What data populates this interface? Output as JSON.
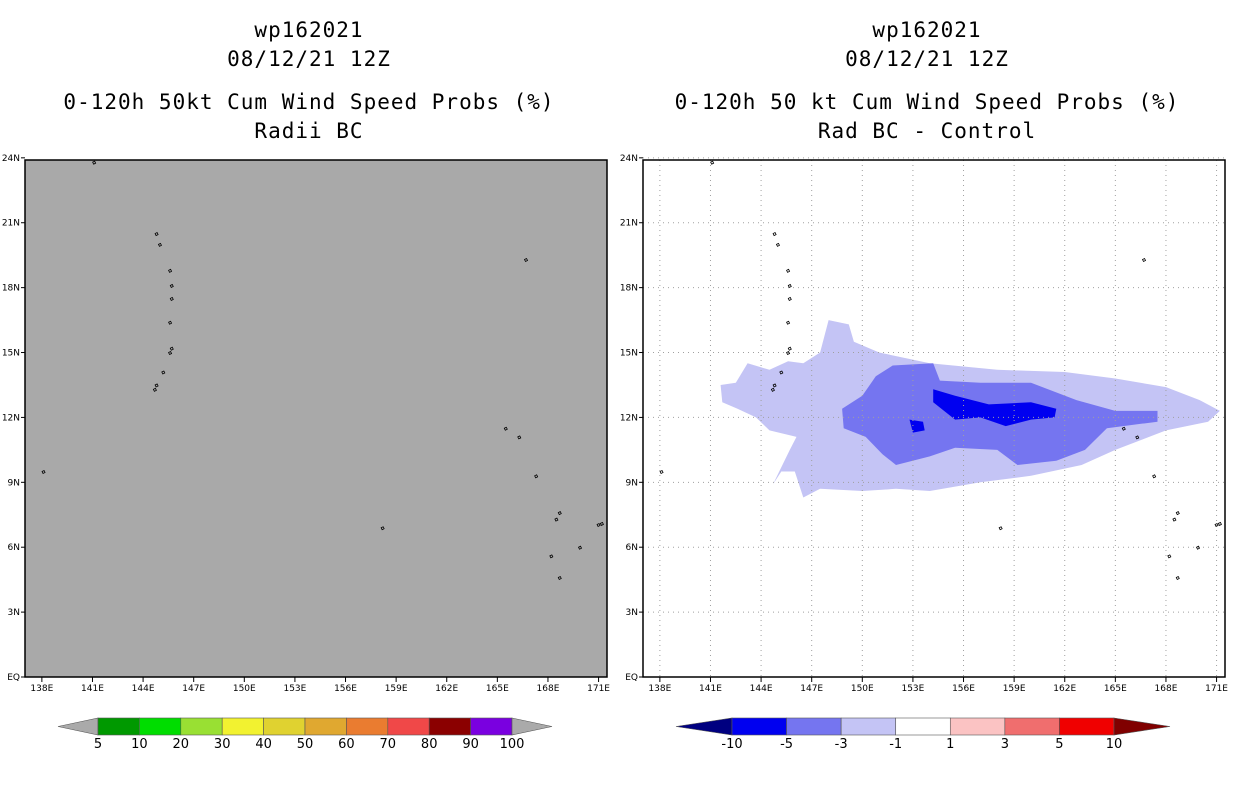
{
  "chart_data": [
    {
      "type": "filled-contour-map",
      "title": [
        "wp162021",
        "08/12/21 12Z",
        "0-120h 50kt Cum Wind Speed Probs (%)",
        "Radii BC"
      ],
      "field": "none",
      "fill_color": "#a9a9a9",
      "grid": false,
      "x_ticks": [
        "138E",
        "141E",
        "144E",
        "147E",
        "150E",
        "153E",
        "156E",
        "159E",
        "162E",
        "165E",
        "168E",
        "171E"
      ],
      "y_ticks": [
        "EQ",
        "3N",
        "6N",
        "9N",
        "12N",
        "15N",
        "18N",
        "21N",
        "24N"
      ],
      "xlim": [
        137,
        171.5
      ],
      "ylim": [
        0,
        23.9
      ],
      "colorbar": {
        "labels": [
          "5",
          "10",
          "20",
          "30",
          "40",
          "50",
          "60",
          "70",
          "80",
          "90",
          "100"
        ],
        "colors": [
          "#aaaaaa",
          "#009900",
          "#00dd00",
          "#99e033",
          "#f2f230",
          "#e0d230",
          "#e0a830",
          "#ea7c30",
          "#f04848",
          "#8b0000",
          "#7a00e0",
          "#aaaaaa"
        ]
      }
    },
    {
      "type": "filled-contour-map",
      "title": [
        "wp162021",
        "08/12/21 12Z",
        "0-120h 50 kt Cum Wind Speed Probs (%)",
        "Rad BC - Control"
      ],
      "field": "difference",
      "grid": true,
      "x_ticks": [
        "138E",
        "141E",
        "144E",
        "147E",
        "150E",
        "153E",
        "156E",
        "159E",
        "162E",
        "165E",
        "168E",
        "171E"
      ],
      "y_ticks": [
        "EQ",
        "3N",
        "6N",
        "9N",
        "12N",
        "15N",
        "18N",
        "21N",
        "24N"
      ],
      "xlim": [
        137,
        171.5
      ],
      "ylim": [
        0,
        23.9
      ],
      "contours": [
        {
          "level": "-3 to -1",
          "color": "#c4c4f5",
          "polygon": [
            [
              146.5,
              14.5
            ],
            [
              147.5,
              15
            ],
            [
              148,
              16.5
            ],
            [
              149.2,
              16.3
            ],
            [
              149.5,
              15.5
            ],
            [
              151,
              15
            ],
            [
              154,
              14.5
            ],
            [
              158,
              14.2
            ],
            [
              162,
              14.1
            ],
            [
              165,
              13.8
            ],
            [
              168,
              13.4
            ],
            [
              170,
              12.8
            ],
            [
              171.2,
              12.3
            ],
            [
              170.5,
              11.8
            ],
            [
              168,
              11.4
            ],
            [
              165,
              10.5
            ],
            [
              163,
              9.8
            ],
            [
              160,
              9.3
            ],
            [
              157,
              9
            ],
            [
              154,
              8.6
            ],
            [
              152,
              8.7
            ],
            [
              150,
              8.6
            ],
            [
              147.5,
              8.7
            ],
            [
              146.5,
              8.3
            ],
            [
              146,
              9.5
            ],
            [
              145.2,
              9.5
            ],
            [
              144.7,
              8.9
            ],
            [
              145.7,
              10.5
            ],
            [
              146.1,
              11.1
            ],
            [
              144.5,
              11.4
            ],
            [
              143.7,
              12
            ],
            [
              142.6,
              12.4
            ],
            [
              141.7,
              12.7
            ],
            [
              141.6,
              13.5
            ],
            [
              142.5,
              13.6
            ],
            [
              143.2,
              14.5
            ],
            [
              144.5,
              14.2
            ],
            [
              145.6,
              14.6
            ],
            [
              146.5,
              14.5
            ]
          ]
        },
        {
          "level": "-5 to -3",
          "color": "#7575f0",
          "polygon": [
            [
              148.8,
              12.4
            ],
            [
              150,
              13
            ],
            [
              150.8,
              13.9
            ],
            [
              151.8,
              14.4
            ],
            [
              154.2,
              14.5
            ],
            [
              154.6,
              13.7
            ],
            [
              157,
              13.6
            ],
            [
              160,
              13.6
            ],
            [
              162.7,
              12.8
            ],
            [
              165,
              12.3
            ],
            [
              167.5,
              12.3
            ],
            [
              167.5,
              11.8
            ],
            [
              164.5,
              11.5
            ],
            [
              163.2,
              10.5
            ],
            [
              161.5,
              10
            ],
            [
              159.2,
              9.8
            ],
            [
              158,
              10.5
            ],
            [
              155.5,
              10.6
            ],
            [
              154,
              10.2
            ],
            [
              152,
              9.8
            ],
            [
              151.2,
              10.3
            ],
            [
              150.2,
              11.1
            ],
            [
              148.9,
              11.5
            ],
            [
              148.8,
              12.4
            ]
          ]
        },
        {
          "level": "-10 to -5",
          "color": "#0000f0",
          "polygon": [
            [
              154.2,
              13.3
            ],
            [
              155.5,
              13
            ],
            [
              157.5,
              12.6
            ],
            [
              160,
              12.7
            ],
            [
              161.5,
              12.4
            ],
            [
              161.4,
              12
            ],
            [
              160,
              11.9
            ],
            [
              158.5,
              11.6
            ],
            [
              157,
              12
            ],
            [
              155.5,
              11.9
            ],
            [
              154.2,
              12.7
            ],
            [
              154.2,
              13.3
            ]
          ]
        },
        {
          "level": "-10 to -5",
          "color": "#0000f0",
          "polygon": [
            [
              152.8,
              11.9
            ],
            [
              153.6,
              11.8
            ],
            [
              153.7,
              11.4
            ],
            [
              153,
              11.3
            ],
            [
              152.8,
              11.9
            ]
          ]
        }
      ],
      "colorbar": {
        "labels": [
          "-10",
          "-5",
          "-3",
          "-1",
          "1",
          "3",
          "5",
          "10"
        ],
        "colors": [
          "#000080",
          "#0000f0",
          "#7575f0",
          "#c4c4f5",
          "#ffffff",
          "#fbc3c3",
          "#f06e6e",
          "#f00000",
          "#800000"
        ]
      }
    }
  ]
}
